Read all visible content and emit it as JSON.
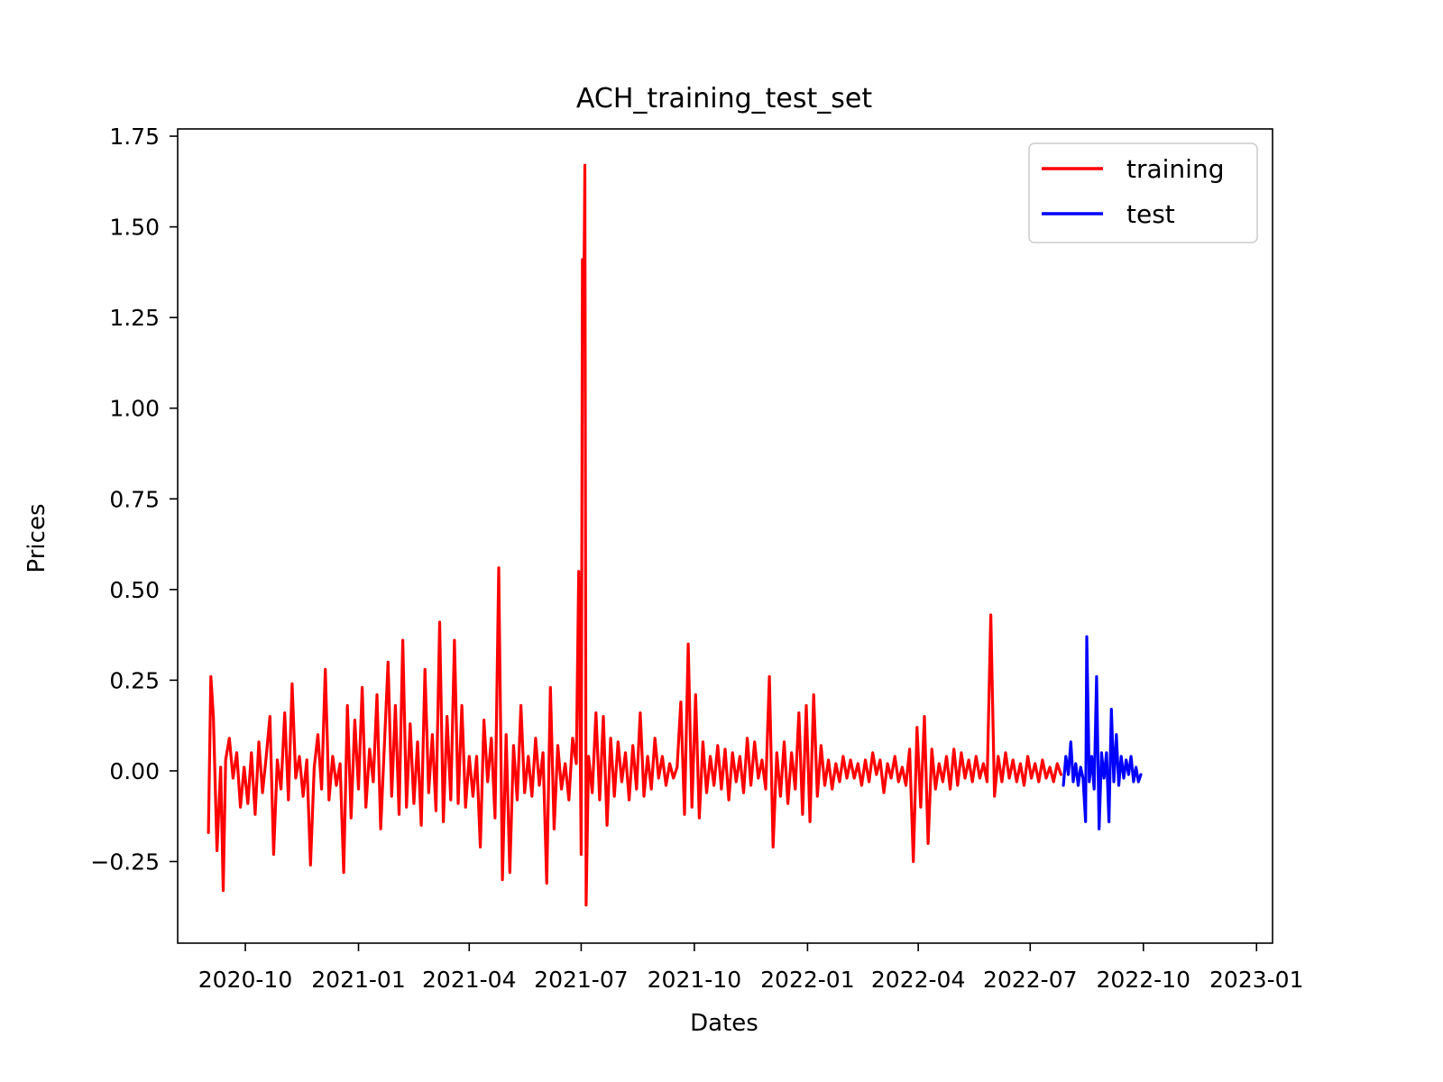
{
  "chart_data": {
    "type": "line",
    "title": "ACH_training_test_set",
    "xlabel": "Dates",
    "ylabel": "Prices",
    "x_ticks": [
      "2020-10",
      "2021-01",
      "2021-04",
      "2021-07",
      "2021-10",
      "2022-01",
      "2022-04",
      "2022-07",
      "2022-10",
      "2023-01"
    ],
    "y_ticks": [
      "−0.25",
      "0.00",
      "0.25",
      "0.50",
      "0.75",
      "1.00",
      "1.25",
      "1.50",
      "1.75"
    ],
    "xlim": [
      "2020-08-07",
      "2023-01-14"
    ],
    "ylim": [
      -0.475,
      1.77
    ],
    "grid": false,
    "legend_position": "top-right",
    "series": [
      {
        "name": "training",
        "color": "#ff0000",
        "points": [
          [
            "2020-09-01",
            -0.17
          ],
          [
            "2020-09-03",
            0.26
          ],
          [
            "2020-09-05",
            0.15
          ],
          [
            "2020-09-08",
            -0.22
          ],
          [
            "2020-09-11",
            0.01
          ],
          [
            "2020-09-13",
            -0.33
          ],
          [
            "2020-09-15",
            0.03
          ],
          [
            "2020-09-18",
            0.09
          ],
          [
            "2020-09-21",
            -0.02
          ],
          [
            "2020-09-24",
            0.05
          ],
          [
            "2020-09-27",
            -0.1
          ],
          [
            "2020-09-30",
            0.01
          ],
          [
            "2020-10-03",
            -0.09
          ],
          [
            "2020-10-06",
            0.05
          ],
          [
            "2020-10-09",
            -0.12
          ],
          [
            "2020-10-12",
            0.08
          ],
          [
            "2020-10-15",
            -0.06
          ],
          [
            "2020-10-18",
            0.04
          ],
          [
            "2020-10-21",
            0.15
          ],
          [
            "2020-10-24",
            -0.23
          ],
          [
            "2020-10-27",
            0.03
          ],
          [
            "2020-10-30",
            -0.05
          ],
          [
            "2020-11-02",
            0.16
          ],
          [
            "2020-11-05",
            -0.08
          ],
          [
            "2020-11-08",
            0.24
          ],
          [
            "2020-11-11",
            -0.02
          ],
          [
            "2020-11-14",
            0.04
          ],
          [
            "2020-11-17",
            -0.07
          ],
          [
            "2020-11-20",
            0.03
          ],
          [
            "2020-11-23",
            -0.26
          ],
          [
            "2020-11-26",
            0.01
          ],
          [
            "2020-11-29",
            0.1
          ],
          [
            "2020-12-02",
            -0.05
          ],
          [
            "2020-12-05",
            0.28
          ],
          [
            "2020-12-08",
            -0.08
          ],
          [
            "2020-12-11",
            0.04
          ],
          [
            "2020-12-14",
            -0.04
          ],
          [
            "2020-12-17",
            0.02
          ],
          [
            "2020-12-20",
            -0.28
          ],
          [
            "2020-12-23",
            0.18
          ],
          [
            "2020-12-26",
            -0.13
          ],
          [
            "2020-12-29",
            0.14
          ],
          [
            "2021-01-01",
            -0.05
          ],
          [
            "2021-01-04",
            0.23
          ],
          [
            "2021-01-07",
            -0.1
          ],
          [
            "2021-01-10",
            0.06
          ],
          [
            "2021-01-13",
            -0.03
          ],
          [
            "2021-01-16",
            0.21
          ],
          [
            "2021-01-19",
            -0.16
          ],
          [
            "2021-01-22",
            0.07
          ],
          [
            "2021-01-25",
            0.3
          ],
          [
            "2021-01-28",
            -0.07
          ],
          [
            "2021-01-31",
            0.18
          ],
          [
            "2021-02-03",
            -0.12
          ],
          [
            "2021-02-06",
            0.36
          ],
          [
            "2021-02-09",
            -0.1
          ],
          [
            "2021-02-12",
            0.13
          ],
          [
            "2021-02-15",
            -0.09
          ],
          [
            "2021-02-18",
            0.08
          ],
          [
            "2021-02-21",
            -0.15
          ],
          [
            "2021-02-24",
            0.28
          ],
          [
            "2021-02-27",
            -0.06
          ],
          [
            "2021-03-02",
            0.1
          ],
          [
            "2021-03-05",
            -0.11
          ],
          [
            "2021-03-08",
            0.41
          ],
          [
            "2021-03-11",
            -0.14
          ],
          [
            "2021-03-14",
            0.15
          ],
          [
            "2021-03-17",
            -0.08
          ],
          [
            "2021-03-20",
            0.36
          ],
          [
            "2021-03-23",
            -0.09
          ],
          [
            "2021-03-26",
            0.18
          ],
          [
            "2021-03-29",
            -0.1
          ],
          [
            "2021-04-01",
            0.04
          ],
          [
            "2021-04-04",
            -0.07
          ],
          [
            "2021-04-07",
            0.04
          ],
          [
            "2021-04-10",
            -0.21
          ],
          [
            "2021-04-13",
            0.14
          ],
          [
            "2021-04-16",
            -0.03
          ],
          [
            "2021-04-19",
            0.09
          ],
          [
            "2021-04-22",
            -0.13
          ],
          [
            "2021-04-25",
            0.56
          ],
          [
            "2021-04-28",
            -0.3
          ],
          [
            "2021-05-01",
            0.1
          ],
          [
            "2021-05-04",
            -0.28
          ],
          [
            "2021-05-07",
            0.07
          ],
          [
            "2021-05-10",
            -0.08
          ],
          [
            "2021-05-13",
            0.18
          ],
          [
            "2021-05-16",
            -0.06
          ],
          [
            "2021-05-19",
            0.04
          ],
          [
            "2021-05-22",
            -0.07
          ],
          [
            "2021-05-25",
            0.09
          ],
          [
            "2021-05-28",
            -0.04
          ],
          [
            "2021-05-31",
            0.05
          ],
          [
            "2021-06-03",
            -0.31
          ],
          [
            "2021-06-06",
            0.23
          ],
          [
            "2021-06-09",
            -0.16
          ],
          [
            "2021-06-12",
            0.07
          ],
          [
            "2021-06-15",
            -0.05
          ],
          [
            "2021-06-18",
            0.02
          ],
          [
            "2021-06-21",
            -0.08
          ],
          [
            "2021-06-24",
            0.09
          ],
          [
            "2021-06-27",
            0.02
          ],
          [
            "2021-06-29",
            0.55
          ],
          [
            "2021-07-01",
            -0.23
          ],
          [
            "2021-07-02",
            1.41
          ],
          [
            "2021-07-03",
            1.22
          ],
          [
            "2021-07-04",
            1.67
          ],
          [
            "2021-07-05",
            -0.37
          ],
          [
            "2021-07-07",
            0.04
          ],
          [
            "2021-07-10",
            -0.06
          ],
          [
            "2021-07-13",
            0.16
          ],
          [
            "2021-07-16",
            -0.08
          ],
          [
            "2021-07-19",
            0.15
          ],
          [
            "2021-07-22",
            -0.15
          ],
          [
            "2021-07-25",
            0.09
          ],
          [
            "2021-07-28",
            -0.07
          ],
          [
            "2021-07-31",
            0.08
          ],
          [
            "2021-08-03",
            -0.03
          ],
          [
            "2021-08-06",
            0.05
          ],
          [
            "2021-08-09",
            -0.08
          ],
          [
            "2021-08-12",
            0.07
          ],
          [
            "2021-08-15",
            -0.05
          ],
          [
            "2021-08-18",
            0.16
          ],
          [
            "2021-08-21",
            -0.07
          ],
          [
            "2021-08-24",
            0.04
          ],
          [
            "2021-08-27",
            -0.05
          ],
          [
            "2021-08-30",
            0.09
          ],
          [
            "2021-09-02",
            -0.02
          ],
          [
            "2021-09-05",
            0.04
          ],
          [
            "2021-09-08",
            -0.04
          ],
          [
            "2021-09-11",
            0.02
          ],
          [
            "2021-09-14",
            -0.02
          ],
          [
            "2021-09-17",
            0.01
          ],
          [
            "2021-09-20",
            0.19
          ],
          [
            "2021-09-23",
            -0.12
          ],
          [
            "2021-09-26",
            0.35
          ],
          [
            "2021-09-29",
            -0.1
          ],
          [
            "2021-10-02",
            0.21
          ],
          [
            "2021-10-05",
            -0.13
          ],
          [
            "2021-10-08",
            0.08
          ],
          [
            "2021-10-11",
            -0.06
          ],
          [
            "2021-10-14",
            0.04
          ],
          [
            "2021-10-17",
            -0.04
          ],
          [
            "2021-10-20",
            0.07
          ],
          [
            "2021-10-23",
            -0.05
          ],
          [
            "2021-10-26",
            0.06
          ],
          [
            "2021-10-29",
            -0.08
          ],
          [
            "2021-11-01",
            0.05
          ],
          [
            "2021-11-04",
            -0.03
          ],
          [
            "2021-11-07",
            0.04
          ],
          [
            "2021-11-10",
            -0.06
          ],
          [
            "2021-11-13",
            0.09
          ],
          [
            "2021-11-16",
            -0.04
          ],
          [
            "2021-11-19",
            0.08
          ],
          [
            "2021-11-22",
            -0.02
          ],
          [
            "2021-11-25",
            0.03
          ],
          [
            "2021-11-28",
            -0.05
          ],
          [
            "2021-12-01",
            0.26
          ],
          [
            "2021-12-04",
            -0.21
          ],
          [
            "2021-12-07",
            0.05
          ],
          [
            "2021-12-10",
            -0.07
          ],
          [
            "2021-12-13",
            0.08
          ],
          [
            "2021-12-16",
            -0.09
          ],
          [
            "2021-12-19",
            0.05
          ],
          [
            "2021-12-22",
            -0.05
          ],
          [
            "2021-12-25",
            0.16
          ],
          [
            "2021-12-28",
            -0.12
          ],
          [
            "2021-12-31",
            0.18
          ],
          [
            "2022-01-03",
            -0.14
          ],
          [
            "2022-01-06",
            0.21
          ],
          [
            "2022-01-09",
            -0.07
          ],
          [
            "2022-01-12",
            0.07
          ],
          [
            "2022-01-15",
            -0.04
          ],
          [
            "2022-01-18",
            0.03
          ],
          [
            "2022-01-21",
            -0.05
          ],
          [
            "2022-01-24",
            0.02
          ],
          [
            "2022-01-27",
            -0.03
          ],
          [
            "2022-01-30",
            0.04
          ],
          [
            "2022-02-02",
            -0.02
          ],
          [
            "2022-02-05",
            0.03
          ],
          [
            "2022-02-08",
            -0.02
          ],
          [
            "2022-02-11",
            0.02
          ],
          [
            "2022-02-14",
            -0.04
          ],
          [
            "2022-02-17",
            0.03
          ],
          [
            "2022-02-20",
            -0.03
          ],
          [
            "2022-02-23",
            0.05
          ],
          [
            "2022-02-26",
            -0.01
          ],
          [
            "2022-03-01",
            0.03
          ],
          [
            "2022-03-04",
            -0.06
          ],
          [
            "2022-03-07",
            0.02
          ],
          [
            "2022-03-10",
            -0.02
          ],
          [
            "2022-03-13",
            0.04
          ],
          [
            "2022-03-16",
            -0.03
          ],
          [
            "2022-03-19",
            0.01
          ],
          [
            "2022-03-22",
            -0.04
          ],
          [
            "2022-03-25",
            0.06
          ],
          [
            "2022-03-28",
            -0.25
          ],
          [
            "2022-03-31",
            0.12
          ],
          [
            "2022-04-03",
            -0.1
          ],
          [
            "2022-04-06",
            0.15
          ],
          [
            "2022-04-09",
            -0.2
          ],
          [
            "2022-04-12",
            0.06
          ],
          [
            "2022-04-15",
            -0.05
          ],
          [
            "2022-04-18",
            0.02
          ],
          [
            "2022-04-21",
            -0.03
          ],
          [
            "2022-04-24",
            0.04
          ],
          [
            "2022-04-27",
            -0.05
          ],
          [
            "2022-04-30",
            0.06
          ],
          [
            "2022-05-03",
            -0.04
          ],
          [
            "2022-05-06",
            0.05
          ],
          [
            "2022-05-09",
            -0.02
          ],
          [
            "2022-05-12",
            0.03
          ],
          [
            "2022-05-15",
            -0.03
          ],
          [
            "2022-05-18",
            0.04
          ],
          [
            "2022-05-21",
            -0.02
          ],
          [
            "2022-05-24",
            0.02
          ],
          [
            "2022-05-27",
            -0.03
          ],
          [
            "2022-05-30",
            0.43
          ],
          [
            "2022-06-02",
            -0.07
          ],
          [
            "2022-06-05",
            0.04
          ],
          [
            "2022-06-08",
            -0.03
          ],
          [
            "2022-06-11",
            0.05
          ],
          [
            "2022-06-14",
            -0.02
          ],
          [
            "2022-06-17",
            0.03
          ],
          [
            "2022-06-20",
            -0.03
          ],
          [
            "2022-06-23",
            0.02
          ],
          [
            "2022-06-26",
            -0.04
          ],
          [
            "2022-06-29",
            0.04
          ],
          [
            "2022-07-02",
            -0.02
          ],
          [
            "2022-07-05",
            0.02
          ],
          [
            "2022-07-08",
            -0.03
          ],
          [
            "2022-07-11",
            0.03
          ],
          [
            "2022-07-14",
            -0.02
          ],
          [
            "2022-07-17",
            0.01
          ],
          [
            "2022-07-20",
            -0.03
          ],
          [
            "2022-07-23",
            0.02
          ],
          [
            "2022-07-26",
            -0.01
          ]
        ]
      },
      {
        "name": "test",
        "color": "#0000ff",
        "points": [
          [
            "2022-07-28",
            -0.04
          ],
          [
            "2022-07-30",
            0.04
          ],
          [
            "2022-08-01",
            -0.01
          ],
          [
            "2022-08-03",
            0.08
          ],
          [
            "2022-08-05",
            -0.03
          ],
          [
            "2022-08-07",
            0.02
          ],
          [
            "2022-08-09",
            -0.04
          ],
          [
            "2022-08-11",
            0.01
          ],
          [
            "2022-08-13",
            -0.02
          ],
          [
            "2022-08-15",
            -0.14
          ],
          [
            "2022-08-16",
            0.37
          ],
          [
            "2022-08-18",
            -0.03
          ],
          [
            "2022-08-20",
            0.04
          ],
          [
            "2022-08-22",
            -0.05
          ],
          [
            "2022-08-24",
            0.26
          ],
          [
            "2022-08-26",
            -0.16
          ],
          [
            "2022-08-28",
            0.05
          ],
          [
            "2022-08-30",
            -0.02
          ],
          [
            "2022-09-01",
            0.05
          ],
          [
            "2022-09-03",
            -0.14
          ],
          [
            "2022-09-05",
            0.17
          ],
          [
            "2022-09-07",
            -0.03
          ],
          [
            "2022-09-09",
            0.1
          ],
          [
            "2022-09-11",
            -0.04
          ],
          [
            "2022-09-13",
            0.04
          ],
          [
            "2022-09-15",
            -0.02
          ],
          [
            "2022-09-17",
            0.03
          ],
          [
            "2022-09-19",
            -0.01
          ],
          [
            "2022-09-21",
            0.04
          ],
          [
            "2022-09-23",
            -0.03
          ],
          [
            "2022-09-25",
            0.01
          ],
          [
            "2022-09-27",
            -0.03
          ],
          [
            "2022-09-29",
            -0.01
          ]
        ]
      }
    ]
  }
}
